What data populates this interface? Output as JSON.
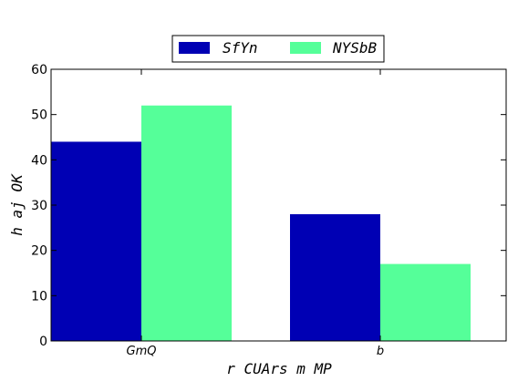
{
  "chart_data": {
    "type": "bar",
    "title": "",
    "xlabel": "r CUArs m MP",
    "ylabel": "h  aj OK",
    "categories": [
      "GmQ",
      "b"
    ],
    "series": [
      {
        "name": "SfYn",
        "values": [
          44,
          28
        ],
        "color": "#0000b4"
      },
      {
        "name": "NYSbB",
        "values": [
          52,
          17
        ],
        "color": "#55ff99"
      }
    ],
    "ylim": [
      0,
      60
    ],
    "yticks": [
      0,
      10,
      20,
      30,
      40,
      50,
      60
    ],
    "grid": false,
    "legend_position": "top-center"
  }
}
